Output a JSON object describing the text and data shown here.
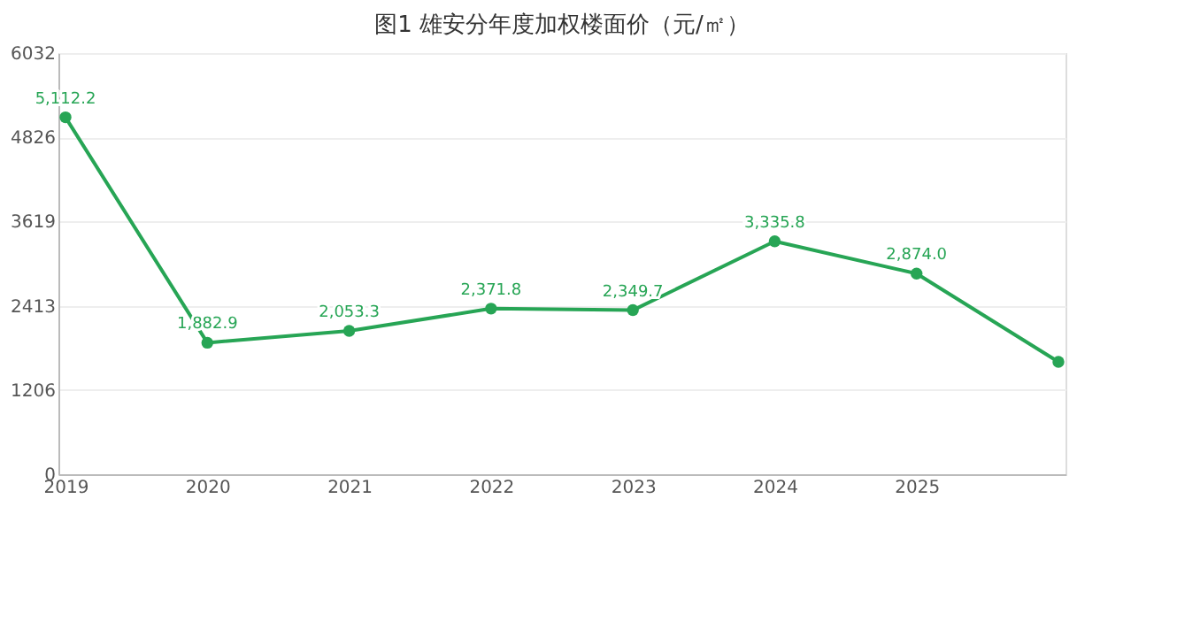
{
  "chart_data": {
    "type": "line",
    "title": "图1 雄安分年度加权楼面价（元/㎡）",
    "categories": [
      "2019",
      "2020",
      "2021",
      "2022",
      "2023",
      "2024",
      "2025",
      null
    ],
    "series": [
      {
        "color": "#27a555",
        "values": [
          5112.2,
          1882.9,
          2053.3,
          2371.8,
          2349.7,
          3335.8,
          2874.0,
          1610
        ],
        "value_labels": [
          "5,112.2",
          "1,882.9",
          "2,053.3",
          "2,371.8",
          "2,349.7",
          "3,335.8",
          "2,874.0",
          null
        ]
      }
    ],
    "ylim": [
      0,
      6032
    ],
    "yticks": [
      0,
      1206,
      2413,
      3619,
      4826,
      6032
    ],
    "grid": "y",
    "marker": "circle",
    "line_style": "solid"
  }
}
